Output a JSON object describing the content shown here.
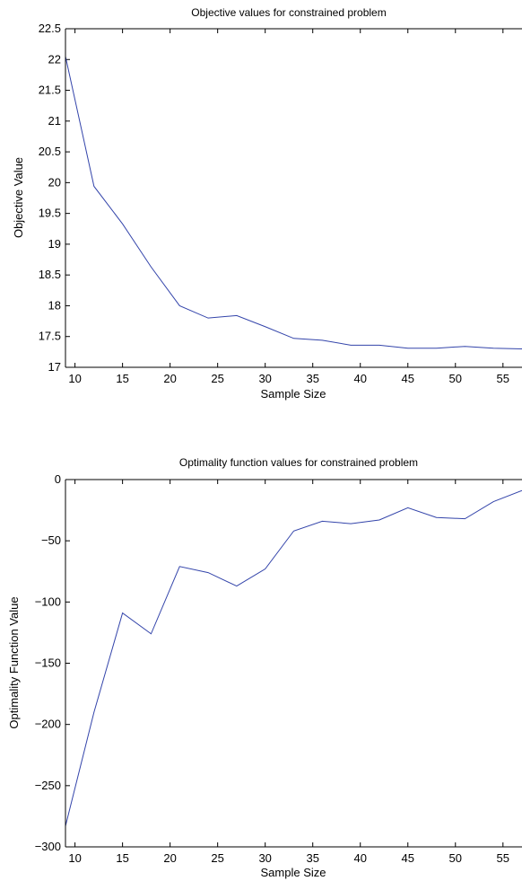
{
  "chart_data": [
    {
      "type": "line",
      "title": "Objective values for constrained problem",
      "xlabel": "Sample Size",
      "ylabel": "Objective Value",
      "xlim": [
        9,
        57
      ],
      "ylim": [
        17,
        22.5
      ],
      "xticks": [
        10,
        15,
        20,
        25,
        30,
        35,
        40,
        45,
        50,
        55
      ],
      "yticks": [
        17,
        17.5,
        18,
        18.5,
        19,
        19.5,
        20,
        20.5,
        21,
        21.5,
        22,
        22.5
      ],
      "grid": false,
      "line_color": "#3344aa",
      "series": [
        {
          "x": [
            9,
            12,
            15,
            18,
            21,
            24,
            27,
            30,
            33,
            36,
            39,
            42,
            45,
            48,
            51,
            54,
            57
          ],
          "values": [
            22.05,
            19.94,
            19.33,
            18.63,
            18.0,
            17.8,
            17.84,
            17.66,
            17.47,
            17.44,
            17.36,
            17.36,
            17.31,
            17.31,
            17.34,
            17.31,
            17.3
          ]
        }
      ]
    },
    {
      "type": "line",
      "title": "Optimality function values for constrained problem",
      "xlabel": "Sample Size",
      "ylabel": "Optimality Function Value",
      "xlim": [
        9,
        57
      ],
      "ylim": [
        -300,
        0
      ],
      "xticks": [
        10,
        15,
        20,
        25,
        30,
        35,
        40,
        45,
        50,
        55
      ],
      "yticks": [
        -300,
        -250,
        -200,
        -150,
        -100,
        -50,
        0
      ],
      "ytick_labels": [
        "−300",
        "−250",
        "−200",
        "−150",
        "−100",
        "−50",
        "0"
      ],
      "grid": false,
      "line_color": "#3344aa",
      "series": [
        {
          "x": [
            9,
            12,
            15,
            18,
            21,
            24,
            27,
            30,
            33,
            36,
            39,
            42,
            45,
            48,
            51,
            54,
            57
          ],
          "values": [
            -283,
            -190,
            -109,
            -126,
            -71,
            -76,
            -87,
            -73,
            -42,
            -34,
            -36,
            -33,
            -23,
            -31,
            -32,
            -18,
            -9
          ]
        }
      ]
    }
  ]
}
